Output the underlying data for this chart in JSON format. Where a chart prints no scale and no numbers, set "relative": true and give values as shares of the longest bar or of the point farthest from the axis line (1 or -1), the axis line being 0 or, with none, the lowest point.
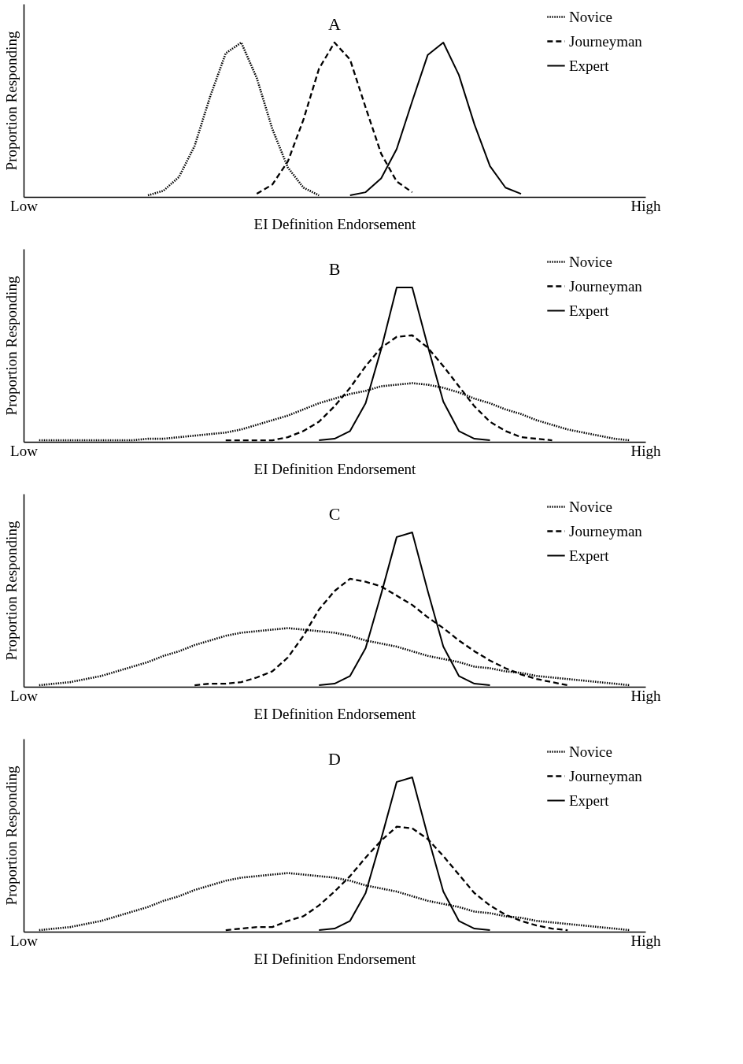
{
  "chart_data": [
    {
      "type": "line",
      "title": "A",
      "xlabel": "EI Definition Endorsement",
      "ylabel": "Proportion Responding",
      "relative": true,
      "categories": [
        "Low",
        null,
        null,
        null,
        null,
        null,
        null,
        null,
        null,
        null,
        null,
        null,
        null,
        null,
        null,
        null,
        null,
        null,
        null,
        null,
        null,
        null,
        null,
        null,
        null,
        null,
        null,
        null,
        null,
        null,
        null,
        null,
        null,
        null,
        null,
        null,
        null,
        null,
        null,
        null,
        "High"
      ],
      "legend": "top right",
      "grid": false,
      "marker": "none",
      "series": [
        {
          "name": "Novice",
          "color": "#000000",
          "line_style": "dotted",
          "values": [
            null,
            null,
            null,
            null,
            null,
            null,
            null,
            null,
            0.01,
            0.04,
            0.13,
            0.33,
            0.65,
            0.93,
            1,
            0.77,
            0.44,
            0.19,
            0.06,
            0.01,
            null,
            null,
            null,
            null,
            null,
            null,
            null,
            null,
            null,
            null,
            null,
            null,
            null,
            null,
            null,
            null,
            null,
            null,
            null,
            null,
            null
          ]
        },
        {
          "name": "Journeyman",
          "color": "#000000",
          "line_style": "dashed",
          "values": [
            null,
            null,
            null,
            null,
            null,
            null,
            null,
            null,
            null,
            null,
            null,
            null,
            null,
            null,
            null,
            0.02,
            0.08,
            0.23,
            0.5,
            0.83,
            1,
            0.89,
            0.58,
            0.28,
            0.1,
            0.03,
            null,
            null,
            null,
            null,
            null,
            null,
            null,
            null,
            null,
            null,
            null,
            null,
            null,
            null,
            null
          ]
        },
        {
          "name": "Expert",
          "color": "#000000",
          "line_style": "solid",
          "values": [
            null,
            null,
            null,
            null,
            null,
            null,
            null,
            null,
            null,
            null,
            null,
            null,
            null,
            null,
            null,
            null,
            null,
            null,
            null,
            null,
            null,
            0.01,
            0.03,
            0.12,
            0.31,
            0.62,
            0.92,
            1,
            0.79,
            0.47,
            0.2,
            0.06,
            0.02,
            null,
            null,
            null,
            null,
            null,
            null,
            null,
            null
          ]
        }
      ]
    },
    {
      "type": "line",
      "title": "B",
      "xlabel": "EI Definition Endorsement",
      "ylabel": "Proportion Responding",
      "relative": true,
      "categories": [
        "Low",
        null,
        null,
        null,
        null,
        null,
        null,
        null,
        null,
        null,
        null,
        null,
        null,
        null,
        null,
        null,
        null,
        null,
        null,
        null,
        null,
        null,
        null,
        null,
        null,
        null,
        null,
        null,
        null,
        null,
        null,
        null,
        null,
        null,
        null,
        null,
        null,
        null,
        null,
        null,
        "High"
      ],
      "legend": "top right",
      "grid": false,
      "marker": "none",
      "series": [
        {
          "name": "Novice",
          "color": "#000000",
          "line_style": "dotted",
          "values": [
            null,
            0.01,
            0.01,
            0.01,
            0.01,
            0.01,
            0.01,
            0.01,
            0.02,
            0.02,
            0.03,
            0.04,
            0.05,
            0.06,
            0.08,
            0.11,
            0.14,
            0.17,
            0.21,
            0.25,
            0.28,
            0.31,
            0.33,
            0.36,
            0.37,
            0.38,
            0.37,
            0.35,
            0.32,
            0.28,
            0.25,
            0.21,
            0.18,
            0.14,
            0.11,
            0.08,
            0.06,
            0.04,
            0.02,
            0.01,
            null
          ]
        },
        {
          "name": "Journeyman",
          "color": "#000000",
          "line_style": "dashed",
          "values": [
            null,
            null,
            null,
            null,
            null,
            null,
            null,
            null,
            null,
            null,
            null,
            null,
            null,
            0.01,
            0.01,
            0.01,
            0.01,
            0.03,
            0.07,
            0.13,
            0.23,
            0.35,
            0.49,
            0.61,
            0.68,
            0.69,
            0.61,
            0.49,
            0.36,
            0.23,
            0.13,
            0.07,
            0.03,
            0.02,
            0.01,
            null,
            null,
            null,
            null,
            null,
            null
          ]
        },
        {
          "name": "Expert",
          "color": "#000000",
          "line_style": "solid",
          "values": [
            null,
            null,
            null,
            null,
            null,
            null,
            null,
            null,
            null,
            null,
            null,
            null,
            null,
            null,
            null,
            null,
            null,
            null,
            null,
            0.01,
            0.02,
            0.07,
            0.25,
            0.6,
            1,
            1,
            0.62,
            0.26,
            0.07,
            0.02,
            0.01,
            null,
            null,
            null,
            null,
            null,
            null,
            null,
            null,
            null,
            null
          ]
        }
      ]
    },
    {
      "type": "line",
      "title": "C",
      "xlabel": "EI Definition Endorsement",
      "ylabel": "Proportion Responding",
      "relative": true,
      "categories": [
        "Low",
        null,
        null,
        null,
        null,
        null,
        null,
        null,
        null,
        null,
        null,
        null,
        null,
        null,
        null,
        null,
        null,
        null,
        null,
        null,
        null,
        null,
        null,
        null,
        null,
        null,
        null,
        null,
        null,
        null,
        null,
        null,
        null,
        null,
        null,
        null,
        null,
        null,
        null,
        null,
        "High"
      ],
      "legend": "top right",
      "grid": false,
      "marker": "none",
      "series": [
        {
          "name": "Novice",
          "color": "#000000",
          "line_style": "dotted",
          "values": [
            null,
            0.01,
            0.02,
            0.03,
            0.05,
            0.07,
            0.1,
            0.13,
            0.16,
            0.2,
            0.23,
            0.27,
            0.3,
            0.33,
            0.35,
            0.36,
            0.37,
            0.38,
            0.37,
            0.36,
            0.35,
            0.33,
            0.3,
            0.28,
            0.26,
            0.23,
            0.2,
            0.18,
            0.16,
            0.13,
            0.12,
            0.1,
            0.09,
            0.07,
            0.06,
            0.05,
            0.04,
            0.03,
            0.02,
            0.01,
            null
          ]
        },
        {
          "name": "Journeyman",
          "color": "#000000",
          "line_style": "dashed",
          "values": [
            null,
            null,
            null,
            null,
            null,
            null,
            null,
            null,
            null,
            null,
            null,
            0.01,
            0.02,
            0.02,
            0.03,
            0.06,
            0.1,
            0.19,
            0.33,
            0.5,
            0.62,
            0.7,
            0.68,
            0.65,
            0.59,
            0.53,
            0.45,
            0.38,
            0.3,
            0.23,
            0.17,
            0.12,
            0.08,
            0.05,
            0.03,
            0.01,
            null,
            null,
            null,
            null,
            null
          ]
        },
        {
          "name": "Expert",
          "color": "#000000",
          "line_style": "solid",
          "values": [
            null,
            null,
            null,
            null,
            null,
            null,
            null,
            null,
            null,
            null,
            null,
            null,
            null,
            null,
            null,
            null,
            null,
            null,
            null,
            0.01,
            0.02,
            0.07,
            0.25,
            0.6,
            0.97,
            1,
            0.62,
            0.26,
            0.07,
            0.02,
            0.01,
            null,
            null,
            null,
            null,
            null,
            null,
            null,
            null,
            null,
            null
          ]
        }
      ]
    },
    {
      "type": "line",
      "title": "D",
      "xlabel": "EI Definition Endorsement",
      "ylabel": "Proportion Responding",
      "relative": true,
      "categories": [
        "Low",
        null,
        null,
        null,
        null,
        null,
        null,
        null,
        null,
        null,
        null,
        null,
        null,
        null,
        null,
        null,
        null,
        null,
        null,
        null,
        null,
        null,
        null,
        null,
        null,
        null,
        null,
        null,
        null,
        null,
        null,
        null,
        null,
        null,
        null,
        null,
        null,
        null,
        null,
        null,
        "High"
      ],
      "legend": "top right",
      "grid": false,
      "marker": "none",
      "series": [
        {
          "name": "Novice",
          "color": "#000000",
          "line_style": "dotted",
          "values": [
            null,
            0.01,
            0.02,
            0.03,
            0.05,
            0.07,
            0.1,
            0.13,
            0.16,
            0.2,
            0.23,
            0.27,
            0.3,
            0.33,
            0.35,
            0.36,
            0.37,
            0.38,
            0.37,
            0.36,
            0.35,
            0.33,
            0.3,
            0.28,
            0.26,
            0.23,
            0.2,
            0.18,
            0.16,
            0.13,
            0.12,
            0.1,
            0.09,
            0.07,
            0.06,
            0.05,
            0.04,
            0.03,
            0.02,
            0.01,
            null
          ]
        },
        {
          "name": "Journeyman",
          "color": "#000000",
          "line_style": "dashed",
          "values": [
            null,
            null,
            null,
            null,
            null,
            null,
            null,
            null,
            null,
            null,
            null,
            null,
            null,
            0.01,
            0.02,
            0.03,
            0.03,
            0.07,
            0.1,
            0.17,
            0.26,
            0.36,
            0.48,
            0.59,
            0.68,
            0.67,
            0.6,
            0.49,
            0.37,
            0.25,
            0.17,
            0.11,
            0.07,
            0.04,
            0.02,
            0.01,
            null,
            null,
            null,
            null,
            null
          ]
        },
        {
          "name": "Expert",
          "color": "#000000",
          "line_style": "solid",
          "values": [
            null,
            null,
            null,
            null,
            null,
            null,
            null,
            null,
            null,
            null,
            null,
            null,
            null,
            null,
            null,
            null,
            null,
            null,
            null,
            0.01,
            0.02,
            0.07,
            0.25,
            0.6,
            0.97,
            1,
            0.62,
            0.26,
            0.07,
            0.02,
            0.01,
            null,
            null,
            null,
            null,
            null,
            null,
            null,
            null,
            null,
            null
          ]
        }
      ]
    }
  ]
}
